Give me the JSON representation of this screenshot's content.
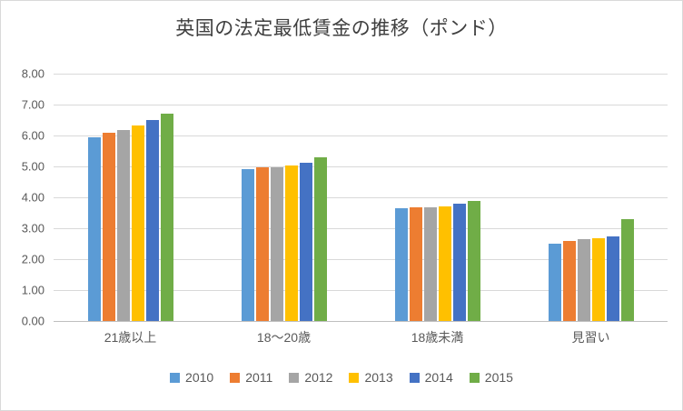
{
  "chart_data": {
    "type": "bar",
    "title": "英国の法定最低賃金の推移（ポンド）",
    "categories": [
      "21歳以上",
      "18〜20歳",
      "18歳未満",
      "見習い"
    ],
    "series": [
      {
        "name": "2010",
        "color": "#5B9BD5",
        "values": [
          5.93,
          4.92,
          3.64,
          2.5
        ]
      },
      {
        "name": "2011",
        "color": "#ED7D31",
        "values": [
          6.08,
          4.98,
          3.68,
          2.6
        ]
      },
      {
        "name": "2012",
        "color": "#A5A5A5",
        "values": [
          6.19,
          4.98,
          3.68,
          2.65
        ]
      },
      {
        "name": "2013",
        "color": "#FFC000",
        "values": [
          6.31,
          5.03,
          3.72,
          2.68
        ]
      },
      {
        "name": "2014",
        "color": "#4472C4",
        "values": [
          6.5,
          5.13,
          3.79,
          2.73
        ]
      },
      {
        "name": "2015",
        "color": "#70AD47",
        "values": [
          6.7,
          5.3,
          3.87,
          3.3
        ]
      }
    ],
    "ylim": [
      0,
      8
    ],
    "ytick_step": 1,
    "ytick_decimals": 2,
    "grid": true,
    "legend_position": "bottom",
    "axis_line_color": "#BFBFBF",
    "gridline_color": "#D9D9D9",
    "text_color": "#595959"
  }
}
